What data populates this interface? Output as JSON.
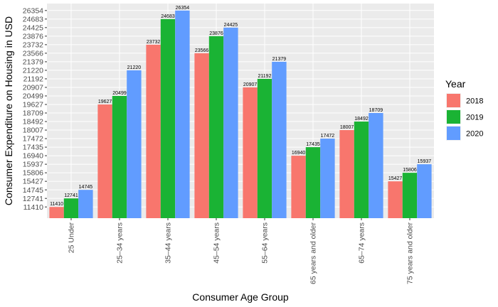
{
  "chart_data": {
    "type": "bar",
    "xlabel": "Consumer Age Group",
    "ylabel": "Consumer Expenditure on Housing in USD",
    "categories": [
      "25 Under",
      "25–34 years",
      "35–44 years",
      "45–54 years",
      "55–64 years",
      "65 years and older",
      "65–74 years",
      "75 years and older"
    ],
    "series": [
      {
        "name": "2018",
        "color": "#F8766D",
        "values": [
          11410,
          19627,
          23732,
          23566,
          20907,
          16940,
          18007,
          15427
        ]
      },
      {
        "name": "2019",
        "color": "#1AB334",
        "values": [
          12741,
          20499,
          24683,
          23876,
          21192,
          17435,
          18492,
          15806
        ]
      },
      {
        "name": "2020",
        "color": "#619CFF",
        "values": [
          14745,
          21220,
          26354,
          24425,
          21379,
          17472,
          18709,
          15937
        ]
      }
    ],
    "y_ticks": [
      "11410",
      "12741",
      "14745",
      "15427",
      "15806",
      "15937",
      "16940",
      "17435",
      "17472",
      "18007",
      "18492",
      "18709",
      "19627",
      "20499",
      "20907",
      "21192",
      "21220",
      "21379",
      "23566",
      "23732",
      "23876",
      "24425",
      "24683",
      "26354"
    ],
    "legend": {
      "title": "Year",
      "placement": "right"
    },
    "y_axis_note": "discrete ordinal scale: each distinct value gets an evenly spaced level",
    "grid": true,
    "panel_background": "#EBEBEB"
  }
}
